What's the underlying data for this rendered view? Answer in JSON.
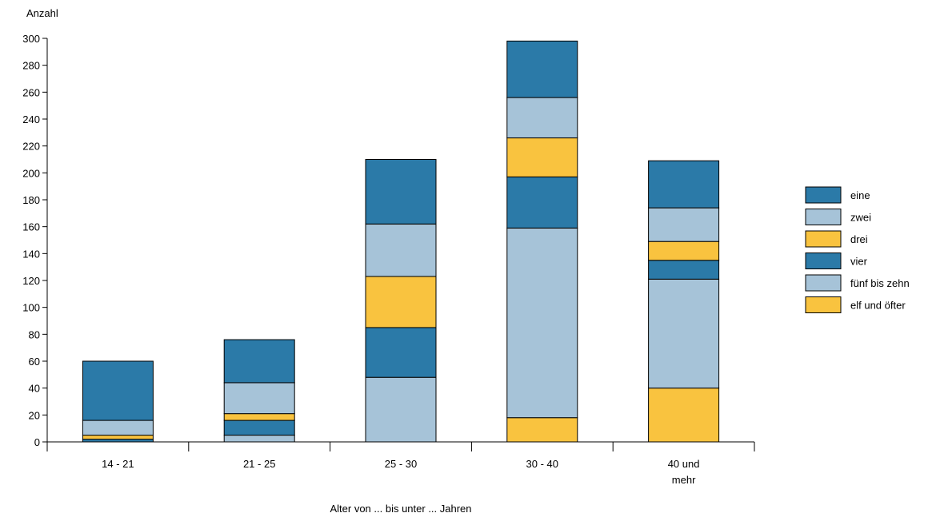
{
  "chart_data": {
    "type": "bar",
    "stacked": true,
    "ylabel": "Anzahl",
    "xlabel": "Alter von ... bis unter ... Jahren",
    "ylim": [
      0,
      300
    ],
    "yticks": [
      0,
      20,
      40,
      60,
      80,
      100,
      120,
      140,
      160,
      180,
      200,
      220,
      240,
      260,
      280,
      300
    ],
    "categories": [
      "14 - 21",
      "21 - 25",
      "25 - 30",
      "30 - 40",
      "40 und mehr"
    ],
    "category_lines": [
      [
        "14 - 21"
      ],
      [
        "21 - 25"
      ],
      [
        "25 - 30"
      ],
      [
        "30 - 40"
      ],
      [
        "40 und",
        "mehr"
      ]
    ],
    "legend_position": "right",
    "grid": false,
    "series": [
      {
        "name": "elf und öfter",
        "color": "#f9c33f",
        "values": [
          0,
          0,
          0,
          18,
          40
        ]
      },
      {
        "name": "fünf bis zehn",
        "color": "#a6c3d8",
        "values": [
          0,
          5,
          48,
          141,
          81
        ]
      },
      {
        "name": "vier",
        "color": "#2b7aa8",
        "values": [
          2,
          11,
          37,
          38,
          14
        ]
      },
      {
        "name": "drei",
        "color": "#f9c33f",
        "values": [
          3,
          5,
          38,
          29,
          14
        ]
      },
      {
        "name": "zwei",
        "color": "#a6c3d8",
        "values": [
          11,
          23,
          39,
          30,
          25
        ]
      },
      {
        "name": "eine",
        "color": "#2b7aa8",
        "values": [
          44,
          32,
          48,
          42,
          35
        ]
      }
    ],
    "legend_order": [
      "eine",
      "zwei",
      "drei",
      "vier",
      "fünf bis zehn",
      "elf und öfter"
    ]
  }
}
